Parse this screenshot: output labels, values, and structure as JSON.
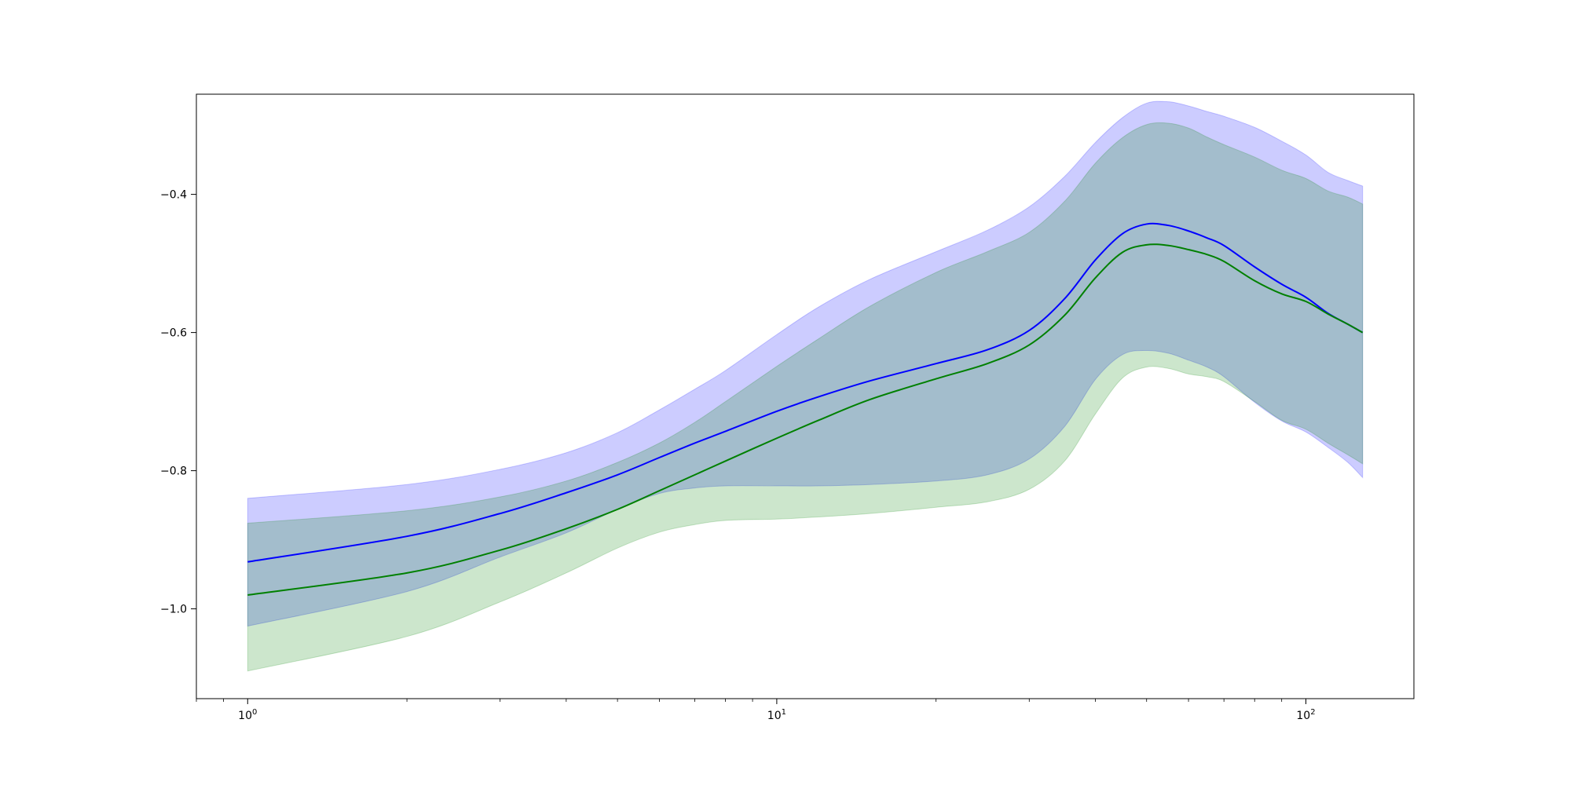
{
  "chart_data": {
    "type": "area",
    "title": "",
    "xlabel": "",
    "ylabel": "",
    "x_scale": "log",
    "xlim": [
      0.8,
      160
    ],
    "ylim": [
      -1.13,
      -0.255
    ],
    "grid": false,
    "legend": "none",
    "x_ticks": [
      {
        "value": 1,
        "base": "10",
        "exp": "0"
      },
      {
        "value": 10,
        "base": "10",
        "exp": "1"
      },
      {
        "value": 100,
        "base": "10",
        "exp": "2"
      }
    ],
    "y_ticks": [
      {
        "value": -1.0,
        "label": "−1.0"
      },
      {
        "value": -0.8,
        "label": "−0.8"
      },
      {
        "value": -0.6,
        "label": "−0.6"
      },
      {
        "value": -0.4,
        "label": "−0.4"
      }
    ],
    "x": [
      1,
      2,
      3,
      4,
      5,
      6,
      7,
      8,
      10,
      12,
      15,
      20,
      25,
      30,
      35,
      40,
      45,
      50,
      55,
      60,
      65,
      70,
      80,
      90,
      100,
      110,
      120,
      128
    ],
    "series": [
      {
        "color": "#0000ff",
        "band_color": "#0000ff",
        "band_opacity": 0.2,
        "mean": [
          -0.932,
          -0.895,
          -0.862,
          -0.832,
          -0.806,
          -0.781,
          -0.76,
          -0.743,
          -0.714,
          -0.693,
          -0.67,
          -0.645,
          -0.625,
          -0.597,
          -0.551,
          -0.495,
          -0.457,
          -0.443,
          -0.445,
          -0.453,
          -0.463,
          -0.474,
          -0.505,
          -0.53,
          -0.549,
          -0.572,
          -0.588,
          -0.6
        ],
        "upper": [
          -0.84,
          -0.82,
          -0.798,
          -0.774,
          -0.745,
          -0.712,
          -0.682,
          -0.655,
          -0.603,
          -0.563,
          -0.523,
          -0.483,
          -0.452,
          -0.418,
          -0.374,
          -0.325,
          -0.289,
          -0.268,
          -0.266,
          -0.272,
          -0.28,
          -0.287,
          -0.303,
          -0.323,
          -0.343,
          -0.368,
          -0.38,
          -0.388
        ],
        "lower": [
          -1.025,
          -0.975,
          -0.925,
          -0.89,
          -0.856,
          -0.833,
          -0.825,
          -0.822,
          -0.822,
          -0.822,
          -0.82,
          -0.815,
          -0.806,
          -0.783,
          -0.736,
          -0.668,
          -0.632,
          -0.626,
          -0.63,
          -0.64,
          -0.65,
          -0.664,
          -0.701,
          -0.728,
          -0.744,
          -0.766,
          -0.788,
          -0.81
        ]
      },
      {
        "color": "#008000",
        "band_color": "#008000",
        "band_opacity": 0.2,
        "mean": [
          -0.98,
          -0.948,
          -0.915,
          -0.884,
          -0.856,
          -0.829,
          -0.806,
          -0.786,
          -0.753,
          -0.727,
          -0.697,
          -0.667,
          -0.645,
          -0.618,
          -0.575,
          -0.521,
          -0.484,
          -0.473,
          -0.474,
          -0.48,
          -0.487,
          -0.497,
          -0.525,
          -0.544,
          -0.555,
          -0.573,
          -0.588,
          -0.6
        ],
        "upper": [
          -0.876,
          -0.858,
          -0.838,
          -0.815,
          -0.788,
          -0.76,
          -0.73,
          -0.7,
          -0.649,
          -0.609,
          -0.562,
          -0.513,
          -0.483,
          -0.455,
          -0.41,
          -0.355,
          -0.318,
          -0.299,
          -0.297,
          -0.304,
          -0.317,
          -0.328,
          -0.346,
          -0.365,
          -0.377,
          -0.395,
          -0.404,
          -0.414
        ],
        "lower": [
          -1.09,
          -1.04,
          -0.99,
          -0.948,
          -0.912,
          -0.889,
          -0.878,
          -0.872,
          -0.87,
          -0.867,
          -0.862,
          -0.853,
          -0.845,
          -0.827,
          -0.786,
          -0.718,
          -0.666,
          -0.65,
          -0.652,
          -0.66,
          -0.664,
          -0.671,
          -0.7,
          -0.727,
          -0.74,
          -0.76,
          -0.777,
          -0.79
        ]
      }
    ]
  }
}
